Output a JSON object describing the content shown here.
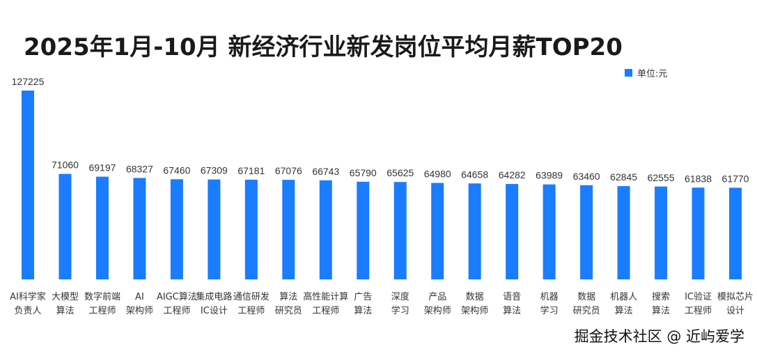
{
  "chart_data": {
    "type": "bar",
    "title": "2025年1月-10月 新经济行业新发岗位平均月薪TOP20",
    "legend": {
      "label": "单位:元",
      "position": "top-right"
    },
    "color": "#1a7cff",
    "xlabel": "",
    "ylabel": "",
    "ylim": [
      0,
      127225
    ],
    "grid": false,
    "categories": [
      [
        "AI科学家",
        "负责人"
      ],
      [
        "大模型",
        "算法"
      ],
      [
        "数字前端",
        "工程师"
      ],
      [
        "AI",
        "架构师"
      ],
      [
        "AIGC算法",
        "工程师"
      ],
      [
        "集成电路",
        "IC设计"
      ],
      [
        "通信研发",
        "工程师"
      ],
      [
        "算法",
        "研究员"
      ],
      [
        "高性能计算",
        "工程师"
      ],
      [
        "广告",
        "算法"
      ],
      [
        "深度",
        "学习"
      ],
      [
        "产品",
        "架构师"
      ],
      [
        "数据",
        "架构师"
      ],
      [
        "语音",
        "算法"
      ],
      [
        "机器",
        "学习"
      ],
      [
        "数据",
        "研究员"
      ],
      [
        "机器人",
        "算法"
      ],
      [
        "搜索",
        "算法"
      ],
      [
        "IC验证",
        "工程师"
      ],
      [
        "模拟芯片",
        "设计"
      ]
    ],
    "values": [
      127225,
      71060,
      69197,
      68327,
      67460,
      67309,
      67181,
      67076,
      66743,
      65790,
      65625,
      64980,
      64658,
      64282,
      63989,
      63460,
      62845,
      62555,
      61838,
      61770
    ]
  },
  "watermark": "掘金技术社区 @ 近屿爱学"
}
